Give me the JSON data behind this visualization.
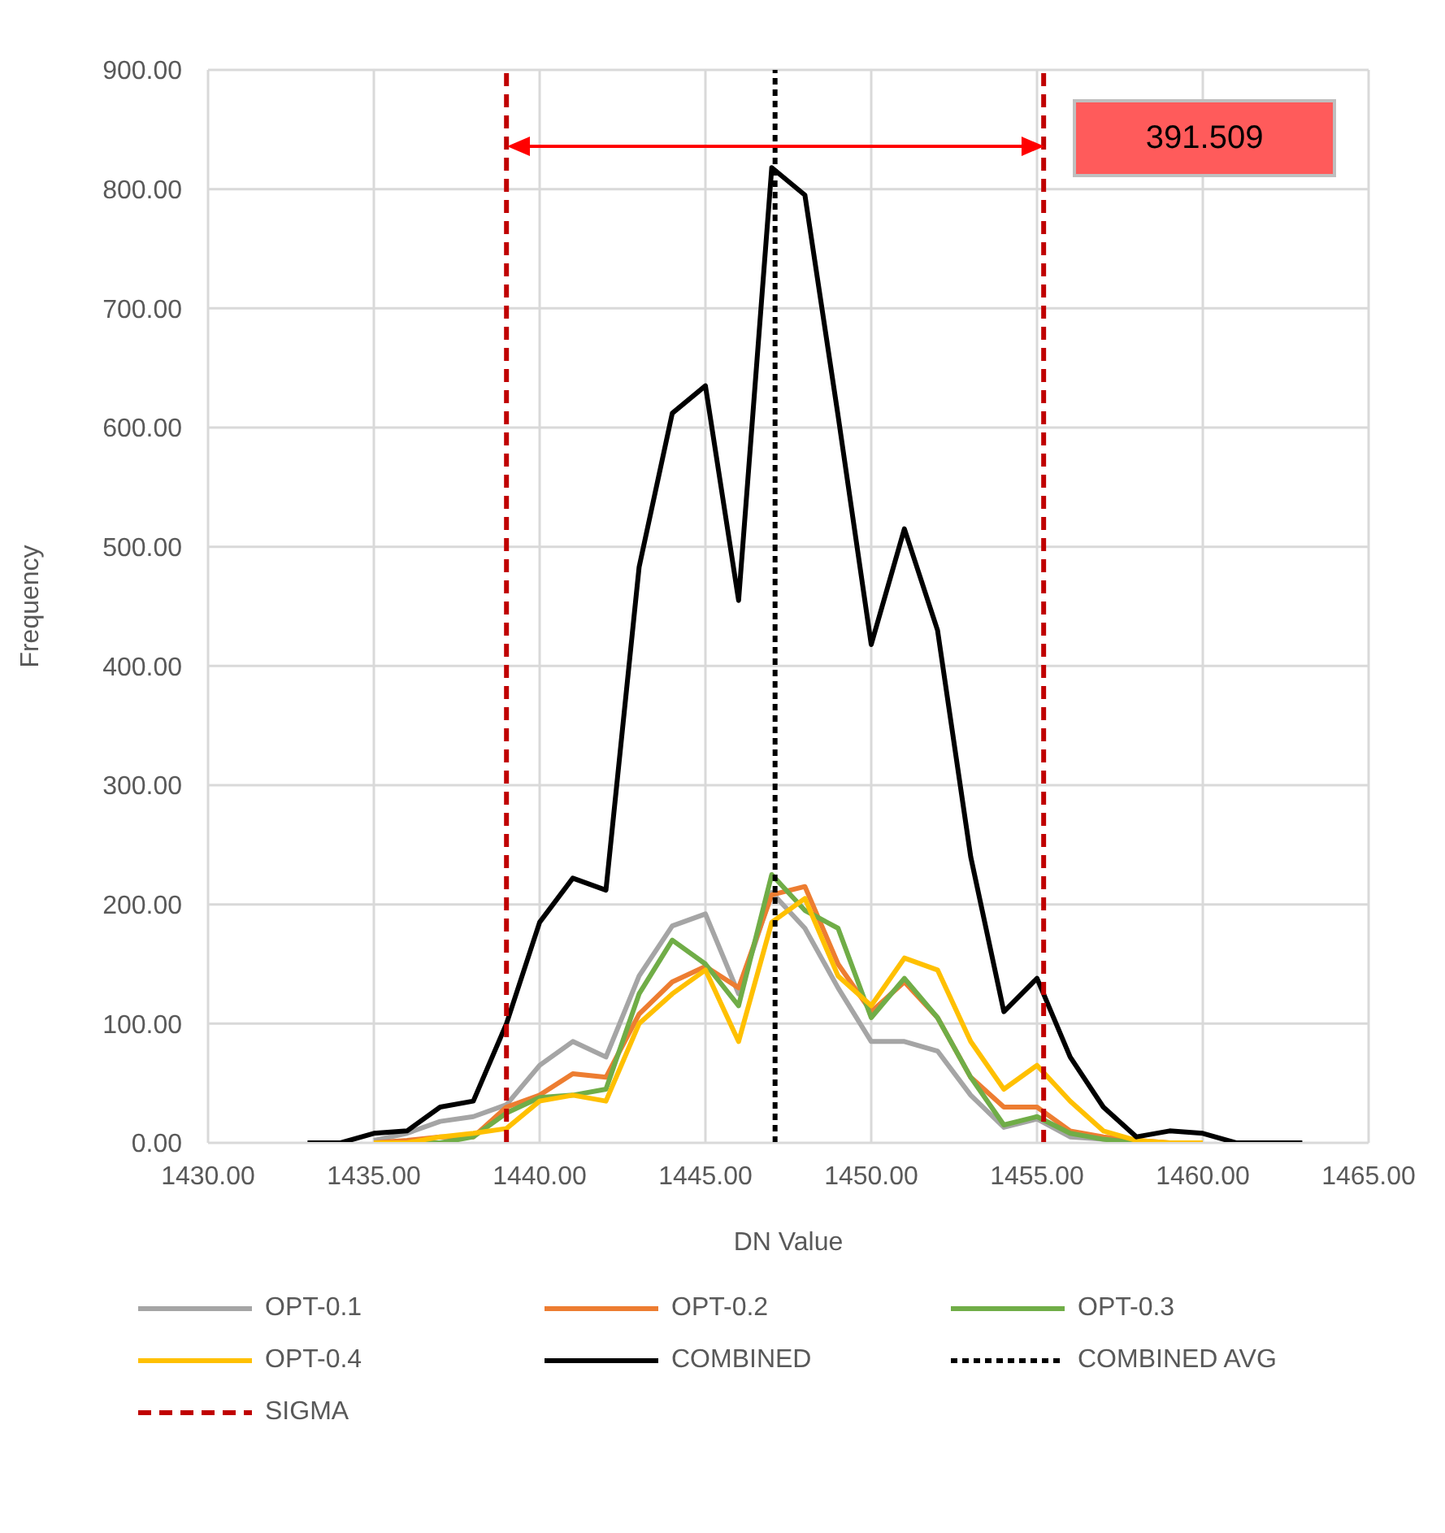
{
  "chart_data": {
    "type": "line",
    "xlabel": "DN Value",
    "ylabel": "Frequency",
    "x": [
      1433,
      1434,
      1435,
      1436,
      1437,
      1438,
      1439,
      1440,
      1441,
      1442,
      1443,
      1444,
      1445,
      1446,
      1447,
      1448,
      1449,
      1450,
      1451,
      1452,
      1453,
      1454,
      1455,
      1456,
      1457,
      1458,
      1459,
      1460,
      1461,
      1462,
      1463
    ],
    "series": [
      {
        "name": "OPT-0.1",
        "color": "#a5a5a5",
        "values": [
          null,
          null,
          2,
          8,
          18,
          22,
          32,
          65,
          85,
          72,
          140,
          182,
          192,
          125,
          210,
          180,
          130,
          85,
          85,
          77,
          40,
          13,
          20,
          5,
          3,
          0,
          0,
          null,
          null,
          null,
          null
        ]
      },
      {
        "name": "OPT-0.2",
        "color": "#ed7d31",
        "values": [
          null,
          null,
          0,
          2,
          5,
          5,
          30,
          40,
          58,
          55,
          108,
          135,
          148,
          130,
          208,
          215,
          150,
          110,
          135,
          105,
          55,
          30,
          30,
          10,
          5,
          2,
          0,
          0,
          null,
          null,
          null
        ]
      },
      {
        "name": "OPT-0.3",
        "color": "#70ad47",
        "values": [
          null,
          null,
          0,
          0,
          0,
          5,
          25,
          38,
          40,
          45,
          125,
          170,
          150,
          115,
          225,
          195,
          180,
          105,
          138,
          105,
          55,
          15,
          22,
          8,
          3,
          0,
          0,
          null,
          null,
          null,
          null
        ]
      },
      {
        "name": "OPT-0.4",
        "color": "#ffc000",
        "values": [
          null,
          null,
          0,
          0,
          5,
          8,
          12,
          35,
          40,
          35,
          100,
          125,
          145,
          85,
          185,
          205,
          140,
          115,
          155,
          145,
          85,
          45,
          65,
          35,
          10,
          2,
          0,
          0,
          null,
          null,
          null
        ]
      },
      {
        "name": "COMBINED",
        "color": "#000000",
        "values": [
          0,
          0,
          8,
          10,
          30,
          35,
          100,
          185,
          222,
          212,
          483,
          612,
          635,
          455,
          818,
          795,
          610,
          418,
          515,
          430,
          240,
          110,
          138,
          72,
          30,
          5,
          10,
          8,
          0,
          0,
          0
        ]
      }
    ],
    "ref_lines": [
      {
        "axis": "x",
        "value": 1447.1,
        "label": "COMBINED AVG",
        "color": "#000000",
        "line_style": "dotted"
      },
      {
        "axis": "x",
        "value": 1439,
        "label": "SIGMA",
        "color": "#c00000",
        "line_style": "dashed"
      },
      {
        "axis": "x",
        "value": 1455.2,
        "color": "#c00000",
        "line_style": "dashed"
      }
    ],
    "annotations": [
      "391.509"
    ],
    "xlim": [
      1430,
      1465
    ],
    "xticks": [
      {
        "value": 1430,
        "label": "1430.00"
      },
      {
        "value": 1435,
        "label": "1435.00"
      },
      {
        "value": 1440,
        "label": "1440.00"
      },
      {
        "value": 1445,
        "label": "1445.00"
      },
      {
        "value": 1450,
        "label": "1450.00"
      },
      {
        "value": 1455,
        "label": "1455.00"
      },
      {
        "value": 1460,
        "label": "1460.00"
      },
      {
        "value": 1465,
        "label": "1465.00"
      }
    ],
    "ylim": [
      0,
      900
    ],
    "yticks": [
      {
        "value": 0,
        "label": "0.00"
      },
      {
        "value": 100,
        "label": "100.00"
      },
      {
        "value": 200,
        "label": "200.00"
      },
      {
        "value": 300,
        "label": "300.00"
      },
      {
        "value": 400,
        "label": "400.00"
      },
      {
        "value": 500,
        "label": "500.00"
      },
      {
        "value": 600,
        "label": "600.00"
      },
      {
        "value": 700,
        "label": "700.00"
      },
      {
        "value": 800,
        "label": "800.00"
      },
      {
        "value": 900,
        "label": "900.00"
      }
    ],
    "grid": true,
    "legend": "bottom",
    "marker": "none",
    "line_style": "solid"
  }
}
